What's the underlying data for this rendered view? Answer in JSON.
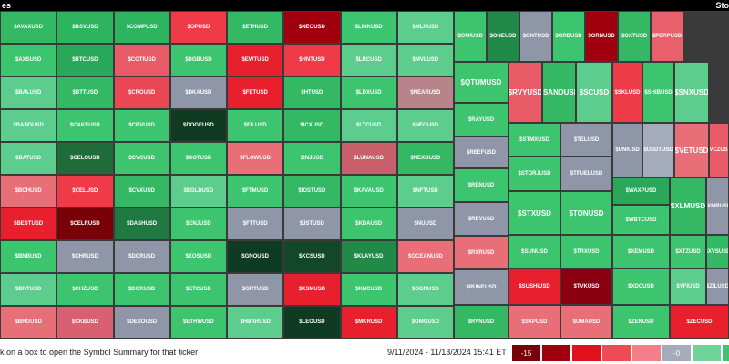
{
  "header": {
    "title": "es",
    "brand": "Sto"
  },
  "tiles": [
    {
      "label": "$AVAXUSD",
      "color": "#34b864"
    },
    {
      "label": "$BSVUSD",
      "color": "#2eb35f"
    },
    {
      "label": "$COMPUSD",
      "color": "#2eb35f"
    },
    {
      "label": "$OPUSD",
      "color": "#ef3b48"
    },
    {
      "label": "$ETHUSD",
      "color": "#34b864"
    },
    {
      "label": "$NEOUSD",
      "color": "#a0000e"
    },
    {
      "label": "$LINKUSD",
      "color": "#3cc46f"
    },
    {
      "label": "$MLNUSD",
      "color": "#5ccd8c"
    },
    {
      "label": "$AXSUSD",
      "color": "#3cc46f"
    },
    {
      "label": "$BTCUSD",
      "color": "#2aa85a"
    },
    {
      "label": "$COTIUSD",
      "color": "#e85b67"
    },
    {
      "label": "$DGBUSD",
      "color": "#3cc46f"
    },
    {
      "label": "$EWTUSD",
      "color": "#e8202e"
    },
    {
      "label": "$HNTUSD",
      "color": "#ef3b48"
    },
    {
      "label": "$LRCUSD",
      "color": "#5ccd8c"
    },
    {
      "label": "$MVLUSD",
      "color": "#5ccd8c"
    },
    {
      "label": "$BALUSD",
      "color": "#5ccd8c"
    },
    {
      "label": "$BTTUSD",
      "color": "#34b864"
    },
    {
      "label": "$CROUSD",
      "color": "#e84753"
    },
    {
      "label": "$DKAUSD",
      "color": "#8e96a8"
    },
    {
      "label": "$FETUSD",
      "color": "#e8202e"
    },
    {
      "label": "$HTUSD",
      "color": "#34b864"
    },
    {
      "label": "$LDXUSD",
      "color": "#3cc46f"
    },
    {
      "label": "$NEARUSD",
      "color": "#b8848c"
    },
    {
      "label": "$BANDUSD",
      "color": "#5ccd8c"
    },
    {
      "label": "$CAKEUSD",
      "color": "#3cc46f"
    },
    {
      "label": "$CRVUSD",
      "color": "#3cc46f"
    },
    {
      "label": "$DOGEUSD",
      "color": "#0e3b22"
    },
    {
      "label": "$FILUSD",
      "color": "#3cc46f"
    },
    {
      "label": "$ICXUSD",
      "color": "#34b864"
    },
    {
      "label": "$LTCUSD",
      "color": "#5ccd8c"
    },
    {
      "label": "$NEOUSD",
      "color": "#5ccd8c"
    },
    {
      "label": "$BATUSD",
      "color": "#5ccd8c"
    },
    {
      "label": "$CELOUSD",
      "color": "#1f6b3a"
    },
    {
      "label": "$CVCUSD",
      "color": "#3cc46f"
    },
    {
      "label": "$DOTUSD",
      "color": "#3cc46f"
    },
    {
      "label": "$FLOWUSD",
      "color": "#e86e78"
    },
    {
      "label": "$INJUSD",
      "color": "#3cc46f"
    },
    {
      "label": "$LUNAUSD",
      "color": "#c8606c"
    },
    {
      "label": "$NEXOUSD",
      "color": "#34b864"
    },
    {
      "label": "$BCHUSD",
      "color": "#e86e78"
    },
    {
      "label": "$CELUSD",
      "color": "#ef3b48"
    },
    {
      "label": "$CVXUSD",
      "color": "#34b864"
    },
    {
      "label": "$EGLDUSD",
      "color": "#5ccd8c"
    },
    {
      "label": "$FTMUSD",
      "color": "#3cc46f"
    },
    {
      "label": "$IOSTUSD",
      "color": "#34b864"
    },
    {
      "label": "$KAVAUSD",
      "color": "#3cc46f"
    },
    {
      "label": "$NFTUSD",
      "color": "#5ccd8c"
    },
    {
      "label": "$BESTUSD",
      "color": "#e8202e"
    },
    {
      "label": "$CELRUSD",
      "color": "#7a0008"
    },
    {
      "label": "$DASHUSD",
      "color": "#1f7a41"
    },
    {
      "label": "$ENJUSD",
      "color": "#3cc46f"
    },
    {
      "label": "$FTTUSD",
      "color": "#8e96a8"
    },
    {
      "label": "$JSTUSD",
      "color": "#8e96a8"
    },
    {
      "label": "$KDAUSD",
      "color": "#3cc46f"
    },
    {
      "label": "$NUUSD",
      "color": "#8e96a8"
    },
    {
      "label": "$BNBUSD",
      "color": "#3cc46f"
    },
    {
      "label": "$CHRUSD",
      "color": "#8e96a8"
    },
    {
      "label": "$DCRUSD",
      "color": "#8e96a8"
    },
    {
      "label": "$EOSUSD",
      "color": "#3cc46f"
    },
    {
      "label": "$GNOUSD",
      "color": "#0e3b22"
    },
    {
      "label": "$KCSUSD",
      "color": "#13472a"
    },
    {
      "label": "$KLAYUSD",
      "color": "#228a48"
    },
    {
      "label": "$OCEANUSD",
      "color": "#e86e78"
    },
    {
      "label": "$BNTUSD",
      "color": "#5ccd8c"
    },
    {
      "label": "$CHZUSD",
      "color": "#3cc46f"
    },
    {
      "label": "$DGRUSD",
      "color": "#3cc46f"
    },
    {
      "label": "$ETCUSD",
      "color": "#3cc46f"
    },
    {
      "label": "$GRTUSD",
      "color": "#8e96a8"
    },
    {
      "label": "$KSMUSD",
      "color": "#e8202e"
    },
    {
      "label": "$KNCUSD",
      "color": "#3cc46f"
    },
    {
      "label": "$OGNUSD",
      "color": "#5ccd8c"
    },
    {
      "label": "$BRGUSD",
      "color": "#e86e78"
    },
    {
      "label": "$CKBUSD",
      "color": "#d86070"
    },
    {
      "label": "$DESOUSD",
      "color": "#8e96a8"
    },
    {
      "label": "$ETHWUSD",
      "color": "#3cc46f"
    },
    {
      "label": "$HBARUSD",
      "color": "#5ccd8c"
    },
    {
      "label": "$LEOUSD",
      "color": "#0e3b22"
    },
    {
      "label": "$MKRUSD",
      "color": "#e8202e"
    },
    {
      "label": "$OMGUSD",
      "color": "#5ccd8c"
    },
    {
      "label": "$OMIUSD",
      "color": "#3cc46f"
    },
    {
      "label": "$ONEUSD",
      "color": "#228a48"
    },
    {
      "label": "$ONTUSD",
      "color": "#8e96a8"
    },
    {
      "label": "$ORBUSD",
      "color": "#3cc46f"
    },
    {
      "label": "$ORNUSD",
      "color": "#a0000e"
    },
    {
      "label": "$OXTUSD",
      "color": "#34b864"
    },
    {
      "label": "$PERPUSD",
      "color": "#e8606c"
    },
    {
      "label": "$QTUMUSD",
      "color": "#3cc46f"
    },
    {
      "label": "$RAYUSD",
      "color": "#3cc46f"
    },
    {
      "label": "$REEFUSD",
      "color": "#8e96a8"
    },
    {
      "label": "$RENUSD",
      "color": "#3cc46f"
    },
    {
      "label": "$REVUSD",
      "color": "#8e96a8"
    },
    {
      "label": "$RSRUSD",
      "color": "#e86e78"
    },
    {
      "label": "$RUNEUSD",
      "color": "#8e96a8"
    },
    {
      "label": "$RVNUSD",
      "color": "#34b864"
    },
    {
      "label": "$RVYUSD",
      "color": "#e85b67"
    },
    {
      "label": "$SANDUSD",
      "color": "#34b864"
    },
    {
      "label": "$SCUSD",
      "color": "#5ccd8c"
    },
    {
      "label": "$SKLUSD",
      "color": "#ef3b48"
    },
    {
      "label": "$SHIBUSD",
      "color": "#3cc46f"
    },
    {
      "label": "$SNXUSD",
      "color": "#5ccd8c"
    },
    {
      "label": "$STMXUSD",
      "color": "#3cc46f"
    },
    {
      "label": "$TELUSD",
      "color": "#8e96a8"
    },
    {
      "label": "$UNIUSD",
      "color": "#8e96a8"
    },
    {
      "label": "$USDTUSD",
      "color": "#a4acbb"
    },
    {
      "label": "$VETUSD",
      "color": "#e86e78"
    },
    {
      "label": "$VCZUSD",
      "color": "#e85b67"
    },
    {
      "label": "$STORJUSD",
      "color": "#3cc46f"
    },
    {
      "label": "$TFUELUSD",
      "color": "#8e96a8"
    },
    {
      "label": "$WAXPUSD",
      "color": "#2aa85a"
    },
    {
      "label": "$WBTCUSD",
      "color": "#3cc46f"
    },
    {
      "label": "$XLMUSD",
      "color": "#34b864"
    },
    {
      "label": "$XMRUSD",
      "color": "#8e96a8"
    },
    {
      "label": "$STXUSD",
      "color": "#3cc46f"
    },
    {
      "label": "$TONUSD",
      "color": "#3cc46f"
    },
    {
      "label": "$SUNUSD",
      "color": "#3cc46f"
    },
    {
      "label": "$TRXUSD",
      "color": "#3cc46f"
    },
    {
      "label": "$XEMUSD",
      "color": "#3cc46f"
    },
    {
      "label": "$XTZUSD",
      "color": "#3cc46f"
    },
    {
      "label": "$XVSUSD",
      "color": "#34b864"
    },
    {
      "label": "$SUSHIUSD",
      "color": "#e8202e"
    },
    {
      "label": "$TVKUSD",
      "color": "#8a0010"
    },
    {
      "label": "$XDCUSD",
      "color": "#3cc46f"
    },
    {
      "label": "$YFIUSD",
      "color": "#5ccd8c"
    },
    {
      "label": "$ZILUSD",
      "color": "#8e96a8"
    },
    {
      "label": "$SXPUSD",
      "color": "#e86e78"
    },
    {
      "label": "$UMAUSD",
      "color": "#e86e78"
    },
    {
      "label": "$ZENUSD",
      "color": "#3cc46f"
    },
    {
      "label": "$ZECUSD",
      "color": "#e8202e"
    }
  ],
  "footer": {
    "hint": "k on a box to open the Symbol Summary for that ticker",
    "date_range": "9/11/2024 - 11/13/2024 15:41 ET",
    "legend": [
      {
        "label": "-15",
        "color": "#7a0008"
      },
      {
        "color": "#a0000e"
      },
      {
        "color": "#e0101c"
      },
      {
        "color": "#f04a55"
      },
      {
        "color": "#f37f88"
      },
      {
        "label": "-0",
        "color": "#a4acbb"
      },
      {
        "color": "#6fd39a"
      },
      {
        "color": "#3cc46f"
      }
    ]
  }
}
